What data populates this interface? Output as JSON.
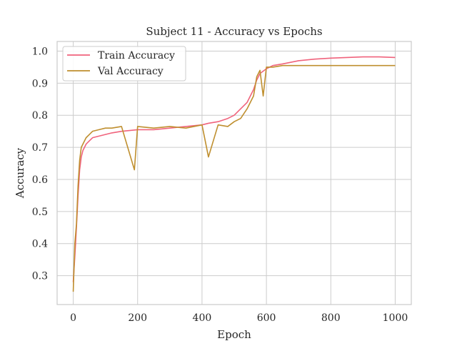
{
  "chart_data": {
    "type": "line",
    "title": "Subject 11 - Accuracy vs Epochs",
    "xlabel": "Epoch",
    "ylabel": "Accuracy",
    "xlim": [
      -50,
      1050
    ],
    "ylim": [
      0.21,
      1.03
    ],
    "xticks": [
      0,
      200,
      400,
      600,
      800,
      1000
    ],
    "yticks": [
      0.3,
      0.4,
      0.5,
      0.6,
      0.7,
      0.8,
      0.9,
      1.0
    ],
    "xtick_labels": [
      "0",
      "200",
      "400",
      "600",
      "800",
      "1000"
    ],
    "ytick_labels": [
      "0.3",
      "0.4",
      "0.5",
      "0.6",
      "0.7",
      "0.8",
      "0.9",
      "1.0"
    ],
    "grid": true,
    "legend_position": "top-left",
    "series": [
      {
        "name": "Train Accuracy",
        "color": "#f0637c",
        "x": [
          0,
          5,
          10,
          15,
          20,
          25,
          30,
          40,
          50,
          60,
          80,
          100,
          120,
          150,
          200,
          250,
          300,
          350,
          400,
          420,
          450,
          480,
          500,
          520,
          540,
          560,
          570,
          580,
          600,
          620,
          650,
          700,
          750,
          800,
          850,
          900,
          950,
          1000
        ],
        "y": [
          0.28,
          0.36,
          0.45,
          0.55,
          0.63,
          0.67,
          0.69,
          0.71,
          0.72,
          0.73,
          0.735,
          0.74,
          0.745,
          0.75,
          0.755,
          0.755,
          0.76,
          0.765,
          0.77,
          0.775,
          0.78,
          0.79,
          0.8,
          0.82,
          0.84,
          0.88,
          0.91,
          0.93,
          0.945,
          0.955,
          0.96,
          0.97,
          0.975,
          0.978,
          0.98,
          0.982,
          0.982,
          0.98
        ]
      },
      {
        "name": "Val Accuracy",
        "color": "#bf8f2f",
        "x": [
          0,
          5,
          10,
          15,
          20,
          25,
          30,
          40,
          50,
          60,
          80,
          100,
          120,
          150,
          190,
          200,
          250,
          300,
          350,
          400,
          420,
          450,
          480,
          500,
          520,
          540,
          560,
          570,
          580,
          590,
          600,
          620,
          650,
          700,
          750,
          800,
          850,
          900,
          950,
          1000
        ],
        "y": [
          0.25,
          0.4,
          0.46,
          0.58,
          0.66,
          0.7,
          0.71,
          0.73,
          0.74,
          0.75,
          0.755,
          0.76,
          0.76,
          0.765,
          0.63,
          0.765,
          0.76,
          0.765,
          0.76,
          0.77,
          0.67,
          0.77,
          0.765,
          0.78,
          0.79,
          0.82,
          0.86,
          0.92,
          0.94,
          0.86,
          0.95,
          0.95,
          0.955,
          0.955,
          0.955,
          0.955,
          0.955,
          0.955,
          0.955,
          0.955
        ]
      }
    ]
  }
}
